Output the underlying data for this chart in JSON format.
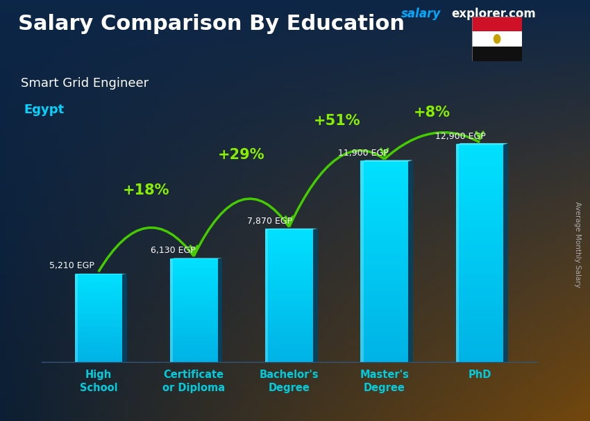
{
  "title": "Salary Comparison By Education",
  "subtitle": "Smart Grid Engineer",
  "country": "Egypt",
  "watermark_salary": "salary",
  "watermark_rest": "explorer.com",
  "ylabel": "Average Monthly Salary",
  "categories": [
    "High\nSchool",
    "Certificate\nor Diploma",
    "Bachelor's\nDegree",
    "Master's\nDegree",
    "PhD"
  ],
  "values": [
    5210,
    6130,
    7870,
    11900,
    12900
  ],
  "value_labels": [
    "5,210 EGP",
    "6,130 EGP",
    "7,870 EGP",
    "11,900 EGP",
    "12,900 EGP"
  ],
  "pct_labels": [
    "+18%",
    "+29%",
    "+51%",
    "+8%"
  ],
  "bg_gradient_top": "#0d2a4a",
  "bg_gradient_bottom": "#1a3a1a",
  "bg_mid_left": "#1a3050",
  "bg_mid_right": "#7a5020",
  "bar_face_color": "#00cfff",
  "bar_face_color2": "#0099bb",
  "bar_right_color": "#005577",
  "bar_top_color": "#55ddff",
  "title_color": "#ffffff",
  "subtitle_color": "#ffffff",
  "country_color": "#00d4ff",
  "value_label_color": "#ffffff",
  "pct_color": "#88ee00",
  "arrow_color": "#44cc00",
  "watermark_salary_color": "#00aaff",
  "watermark_rest_color": "#ffffff",
  "ylabel_color": "#aaaaaa",
  "xtick_color": "#00ccdd",
  "ylim_max": 15000,
  "bar_width": 0.5,
  "figsize": [
    8.5,
    6.06
  ],
  "dpi": 100
}
